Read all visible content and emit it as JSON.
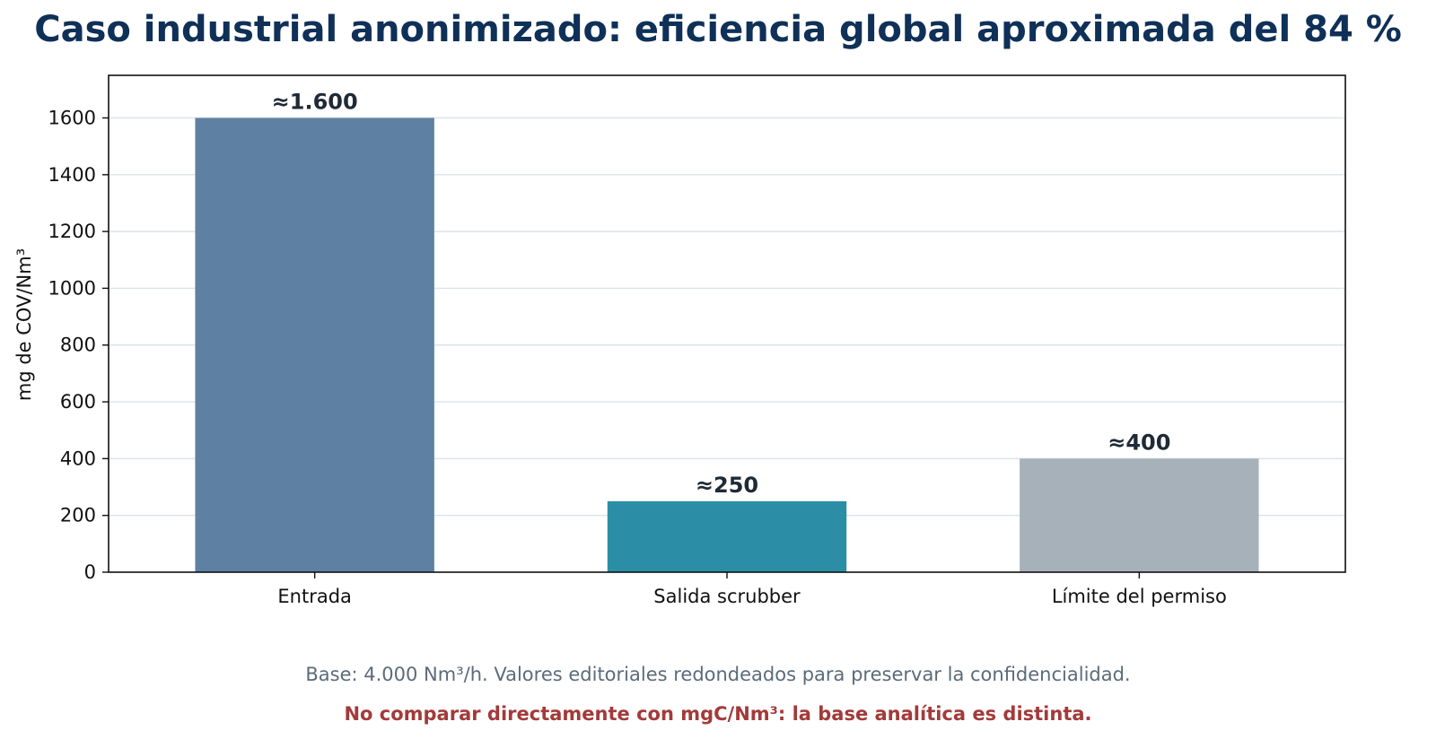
{
  "chart_data": {
    "type": "bar",
    "title": "Caso industrial anonimizado: eficiencia global aproximada del 84 %",
    "xlabel": "",
    "ylabel": "mg de COV/Nm³",
    "categories": [
      "Entrada",
      "Salida scrubber",
      "Límite del permiso"
    ],
    "values": [
      1600,
      250,
      400
    ],
    "data_labels": [
      "≈1.600",
      "≈250",
      "≈400"
    ],
    "bar_colors": [
      "#5e80a3",
      "#2c8ea6",
      "#a7b1ba"
    ],
    "ylim": [
      0,
      1750
    ],
    "yticks": [
      0,
      200,
      400,
      600,
      800,
      1000,
      1200,
      1400,
      1600
    ],
    "grid": true,
    "grid_axis": "y",
    "legend": "none",
    "footnote": "Base: 4.000 Nm³/h. Valores editoriales redondeados para preservar la confidencialidad.",
    "warning": "No comparar directamente con mgC/Nm³: la base analítica es distinta."
  },
  "colors": {
    "title": "#0f3057",
    "data_label": "#1f2a36",
    "gridline": "#d9e4ea",
    "axis": "#111111",
    "footnote": "#5b6b7a",
    "warning": "#a33a3a"
  }
}
